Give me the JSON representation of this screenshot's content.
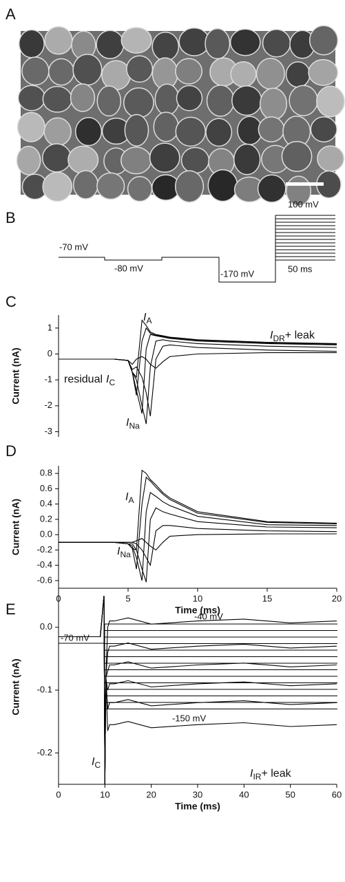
{
  "figure": {
    "panel_labels": [
      "A",
      "B",
      "C",
      "D",
      "E"
    ],
    "protocol_b": {
      "labels": [
        "-70 mV",
        "-80 mV",
        "-170 mV",
        "100 mV",
        "50 ms"
      ]
    },
    "protocol_e": {
      "labels": [
        "-70 mV",
        "-40 mV",
        "-150 mV"
      ]
    }
  },
  "chart_data": [
    {
      "type": "line",
      "ylabel": "Current (nA)",
      "x": [
        0,
        4,
        5,
        5.3,
        5.6,
        6,
        6.3,
        6.6,
        7,
        7.5,
        8,
        10,
        15,
        20
      ],
      "xlim": [
        0,
        20
      ],
      "ylim": [
        -3.2,
        1.5
      ],
      "yticks": [
        -3,
        -2,
        -1,
        0,
        1
      ],
      "series": [
        {
          "color": "#000000",
          "values": [
            -0.2,
            -0.2,
            -0.25,
            -0.7,
            -0.9,
            1.3,
            1.1,
            0.85,
            0.75,
            0.7,
            0.65,
            0.55,
            0.45,
            0.4
          ]
        },
        {
          "color": "#000000",
          "values": [
            -0.2,
            -0.2,
            -0.25,
            -0.7,
            -1.6,
            0.5,
            1.0,
            0.8,
            0.72,
            0.68,
            0.63,
            0.53,
            0.43,
            0.38
          ]
        },
        {
          "color": "#000000",
          "values": [
            -0.2,
            -0.2,
            -0.25,
            -0.7,
            -1.4,
            -2.3,
            0.2,
            0.75,
            0.7,
            0.65,
            0.6,
            0.5,
            0.4,
            0.35
          ]
        },
        {
          "color": "#000000",
          "values": [
            -0.2,
            -0.2,
            -0.25,
            -0.7,
            -1.0,
            -2.0,
            -2.7,
            -0.5,
            0.5,
            0.55,
            0.5,
            0.4,
            0.3,
            0.25
          ]
        },
        {
          "color": "#000000",
          "values": [
            -0.2,
            -0.2,
            -0.25,
            -0.6,
            -0.5,
            -0.9,
            -1.5,
            -2.4,
            -0.2,
            0.3,
            0.35,
            0.25,
            0.15,
            0.1
          ]
        },
        {
          "color": "#000000",
          "values": [
            -0.2,
            -0.2,
            -0.25,
            -0.4,
            -0.2,
            -0.1,
            -0.2,
            -0.4,
            -0.55,
            -0.3,
            -0.1,
            0,
            0.05,
            0.05
          ]
        }
      ],
      "annotations": [
        {
          "main": "I",
          "sub": "A"
        },
        {
          "main": "I",
          "sub": "DR",
          "suffix": "+ leak"
        },
        {
          "prefix": "residual",
          "main": "I",
          "sub": "C"
        },
        {
          "main": "I",
          "sub": "Na"
        }
      ]
    },
    {
      "type": "line",
      "ylabel": "Current (nA)",
      "xlabel": "Time (ms)",
      "x": [
        0,
        4,
        5,
        5.3,
        5.6,
        6,
        6.3,
        6.6,
        7,
        7.5,
        8,
        10,
        15,
        20
      ],
      "xlim": [
        0,
        20
      ],
      "xticks": [
        0,
        5,
        10,
        15,
        20
      ],
      "ylim": [
        -0.7,
        0.9
      ],
      "yticks": [
        -0.6,
        -0.4,
        -0.2,
        {
          "value": 0,
          "label": "0.0"
        },
        0.2,
        0.4,
        0.6,
        0.8
      ],
      "series": [
        {
          "color": "#000000",
          "values": [
            -0.1,
            -0.1,
            -0.12,
            -0.18,
            -0.2,
            0.84,
            0.8,
            0.72,
            0.65,
            0.55,
            0.48,
            0.3,
            0.17,
            0.15
          ]
        },
        {
          "color": "#000000",
          "values": [
            -0.1,
            -0.1,
            -0.12,
            -0.18,
            -0.45,
            0.4,
            0.75,
            0.7,
            0.62,
            0.53,
            0.46,
            0.28,
            0.16,
            0.14
          ]
        },
        {
          "color": "#000000",
          "values": [
            -0.1,
            -0.1,
            -0.12,
            -0.15,
            -0.3,
            -0.6,
            0.3,
            0.55,
            0.5,
            0.43,
            0.38,
            0.24,
            0.13,
            0.12
          ]
        },
        {
          "color": "#000000",
          "values": [
            -0.1,
            -0.1,
            -0.12,
            -0.12,
            -0.2,
            -0.45,
            -0.62,
            0.2,
            0.35,
            0.3,
            0.27,
            0.17,
            0.1,
            0.09
          ]
        },
        {
          "color": "#000000",
          "values": [
            -0.1,
            -0.1,
            -0.1,
            -0.1,
            -0.12,
            -0.2,
            -0.3,
            -0.4,
            0.05,
            0.12,
            0.12,
            0.08,
            0.05,
            0.04
          ]
        },
        {
          "color": "#000000",
          "values": [
            -0.1,
            -0.1,
            -0.1,
            -0.1,
            -0.08,
            -0.05,
            -0.1,
            -0.15,
            -0.2,
            -0.1,
            -0.02,
            0,
            0.01,
            0.01
          ]
        }
      ],
      "annotations": [
        {
          "main": "I",
          "sub": "A"
        },
        {
          "main": "I",
          "sub": "Na"
        }
      ]
    },
    {
      "type": "line",
      "ylabel": "Current (nA)",
      "xlabel": "Time (ms)",
      "x": [
        0,
        9,
        9.8,
        10,
        10.2,
        10.6,
        11,
        12,
        15,
        20,
        30,
        40,
        50,
        60
      ],
      "xlim": [
        0,
        60
      ],
      "xticks": [
        0,
        10,
        20,
        30,
        40,
        50,
        60
      ],
      "ylim": [
        -0.25,
        0.06
      ],
      "yticks": [
        -0.2,
        -0.1,
        {
          "value": 0,
          "label": "0.0"
        }
      ],
      "series": [
        {
          "color": "#000000",
          "values": [
            -0.015,
            -0.015,
            0.05,
            -0.25,
            -0.08,
            0,
            0.01,
            0.01,
            0.015,
            0.005,
            0.01,
            0.013,
            0.007,
            0.01
          ]
        },
        {
          "color": "#000000",
          "values": [
            -0.015,
            -0.015,
            0.05,
            -0.25,
            -0.08,
            -0.04,
            -0.03,
            -0.03,
            -0.025,
            -0.035,
            -0.03,
            -0.027,
            -0.033,
            -0.03
          ]
        },
        {
          "color": "#000000",
          "values": [
            -0.015,
            -0.015,
            0.05,
            -0.25,
            -0.08,
            -0.07,
            -0.06,
            -0.06,
            -0.055,
            -0.065,
            -0.06,
            -0.057,
            -0.063,
            -0.06
          ]
        },
        {
          "color": "#000000",
          "values": [
            -0.015,
            -0.015,
            0.05,
            -0.25,
            -0.08,
            -0.1,
            -0.09,
            -0.09,
            -0.085,
            -0.095,
            -0.09,
            -0.087,
            -0.093,
            -0.09
          ]
        },
        {
          "color": "#000000",
          "values": [
            -0.015,
            -0.015,
            0.05,
            -0.25,
            -0.08,
            -0.13,
            -0.12,
            -0.12,
            -0.115,
            -0.125,
            -0.12,
            -0.117,
            -0.123,
            -0.12
          ]
        },
        {
          "color": "#000000",
          "values": [
            -0.015,
            -0.015,
            0.05,
            -0.25,
            -0.08,
            -0.165,
            -0.155,
            -0.155,
            -0.15,
            -0.16,
            -0.155,
            -0.152,
            -0.158,
            -0.155
          ]
        }
      ],
      "annotations": [
        {
          "main": "I",
          "sub": "C"
        },
        {
          "main": "I",
          "sub": "IR",
          "suffix": "+ leak"
        }
      ]
    }
  ]
}
